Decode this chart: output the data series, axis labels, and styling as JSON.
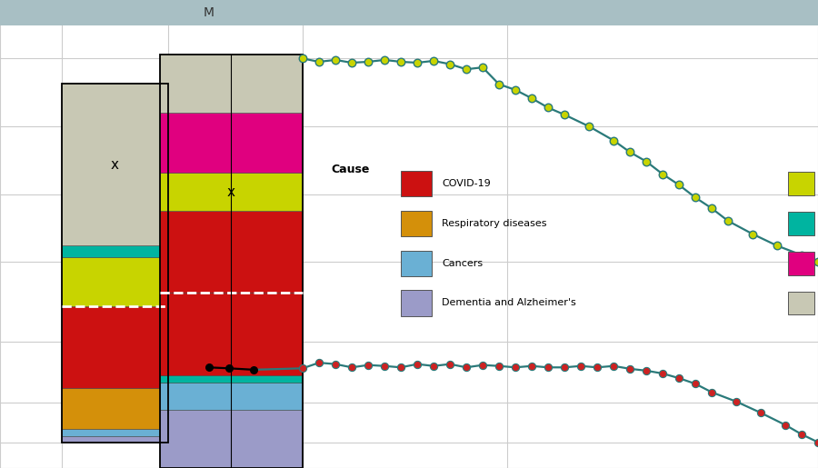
{
  "bg_color": "#ffffff",
  "header_color": "#a8bfc4",
  "grid_color": "#cccccc",
  "header_text": "M",
  "header_text_color": "#333333",
  "bar1_segments_bottom_to_top": [
    [
      "#9b9bc8",
      0.012
    ],
    [
      "#6ab0d4",
      0.016
    ],
    [
      "#d4900a",
      0.088
    ],
    [
      "#cc1111",
      0.175
    ],
    [
      "#c8d400",
      0.105
    ],
    [
      "#00b4a0",
      0.025
    ],
    [
      "#c8c8b4",
      0.345
    ]
  ],
  "bar2_segments_bottom_to_top": [
    [
      "#9b9bc8",
      0.125
    ],
    [
      "#6ab0d4",
      0.058
    ],
    [
      "#00b4a0",
      0.016
    ],
    [
      "#cc1111",
      0.175
    ],
    [
      "#cc1111",
      0.175
    ],
    [
      "#c8d400",
      0.082
    ],
    [
      "#e0007f",
      0.128
    ],
    [
      "#c8c8b4",
      0.125
    ]
  ],
  "line1_color": "#2a7a7a",
  "line1_dot_color": "#c8d400",
  "line2_color": "#2a7a7a",
  "line2_dot_color": "#cc2222",
  "legend_items_left": [
    [
      "#cc1111",
      "COVID-19"
    ],
    [
      "#d4900a",
      "Respiratory diseases"
    ],
    [
      "#6ab0d4",
      "Cancers"
    ],
    [
      "#9b9bc8",
      "Dementia and Alzheimer's"
    ]
  ],
  "legend_items_right": [
    "#c8d400",
    "#00b4a0",
    "#e0007f",
    "#c8c8b4"
  ]
}
